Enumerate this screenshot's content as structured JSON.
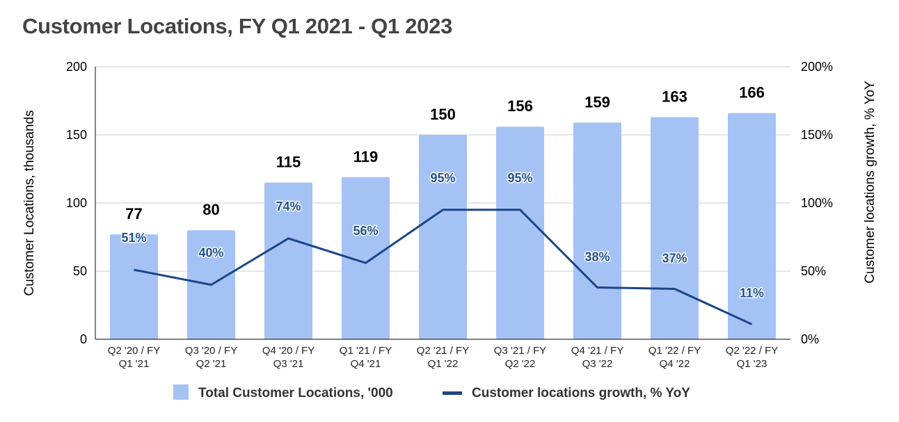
{
  "chart_data": {
    "type": "bar+line",
    "title": "Customer Locations, FY Q1 2021 - Q1 2023",
    "categories": [
      [
        "Q2 '20 / FY",
        "Q1 '21"
      ],
      [
        "Q3 '20 / FY",
        "Q2 '21"
      ],
      [
        "Q4 '20 / FY",
        "Q3 '21"
      ],
      [
        "Q1 '21 / FY",
        "Q4 '21"
      ],
      [
        "Q2 '21 / FY",
        "Q1 '22"
      ],
      [
        "Q3 '21 / FY",
        "Q2 '22"
      ],
      [
        "Q4 '21 / FY",
        "Q3 '22"
      ],
      [
        "Q1 '22 / FY",
        "Q4 '22"
      ],
      [
        "Q2 '22 / FY",
        "Q1 '23"
      ]
    ],
    "series": [
      {
        "name": "Total Customer Locations, '000",
        "type": "bar",
        "axis": "left",
        "color": "#a4c2f4",
        "values": [
          77,
          80,
          115,
          119,
          150,
          156,
          159,
          163,
          166
        ],
        "labels": [
          "77",
          "80",
          "115",
          "119",
          "150",
          "156",
          "159",
          "163",
          "166"
        ]
      },
      {
        "name": "Customer locations growth, % YoY",
        "type": "line",
        "axis": "right",
        "color": "#1c4587",
        "values": [
          51,
          40,
          74,
          56,
          95,
          95,
          38,
          37,
          11
        ],
        "labels": [
          "51%",
          "40%",
          "74%",
          "56%",
          "95%",
          "95%",
          "38%",
          "37%",
          "11%"
        ]
      }
    ],
    "ylabel": "Customer Locations, thousands",
    "y2label": "Customer locations growth, % YoY",
    "ylim": [
      0,
      200
    ],
    "y2lim": [
      0,
      200
    ],
    "yticks": [
      "0",
      "50",
      "100",
      "150",
      "200"
    ],
    "y2ticks": [
      "0%",
      "50%",
      "100%",
      "150%",
      "200%"
    ],
    "grid": true,
    "legend_position": "bottom"
  }
}
